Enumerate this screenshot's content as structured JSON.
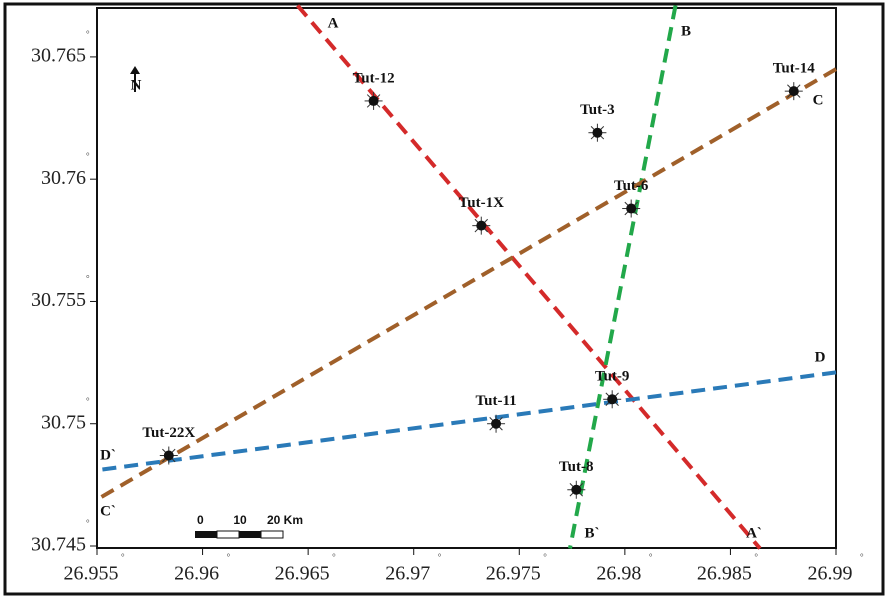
{
  "chart_data": {
    "type": "scatter",
    "xlim": [
      26.955,
      26.99
    ],
    "ylim": [
      30.745,
      30.767
    ],
    "xticks": [
      26.955,
      26.96,
      26.965,
      26.97,
      26.975,
      26.98,
      26.985,
      26.99
    ],
    "yticks": [
      30.745,
      30.75,
      30.755,
      30.76,
      30.765
    ],
    "degree_symbol": "°",
    "north_label": "N",
    "scale_bar_labels": [
      "0",
      "10",
      "20 Km"
    ],
    "points": {
      "labels": [
        "Tut-12",
        "Tut-3",
        "Tut-14",
        "Tut-6",
        "Tut-1X",
        "Tut-9",
        "Tut-11",
        "Tut-22X",
        "Tut-8"
      ],
      "x": [
        26.9681,
        26.9787,
        26.988,
        26.9803,
        26.9732,
        26.9794,
        26.9739,
        26.9584,
        26.9777
      ],
      "y": [
        30.7632,
        30.7619,
        30.7636,
        30.7588,
        30.7581,
        30.751,
        30.75,
        30.7487,
        30.7473
      ],
      "color": "#111111"
    },
    "series": [
      {
        "labels": [
          "A",
          "A`"
        ],
        "color": "#d42a2a",
        "x": [
          26.9645,
          26.9864
        ],
        "y": [
          30.7671,
          30.7449
        ]
      },
      {
        "labels": [
          "B",
          "B`"
        ],
        "color": "#22a84a",
        "x": [
          26.9824,
          26.9774
        ],
        "y": [
          30.7671,
          30.7449
        ]
      },
      {
        "labels": [
          "C",
          "C`"
        ],
        "color": "#a0602a",
        "x": [
          26.99,
          26.955
        ],
        "y": [
          30.7645,
          30.7469
        ]
      },
      {
        "labels": [
          "D",
          "D`"
        ],
        "color": "#2a7ab8",
        "x": [
          26.99,
          26.955
        ],
        "y": [
          30.7521,
          30.7481
        ]
      }
    ]
  }
}
